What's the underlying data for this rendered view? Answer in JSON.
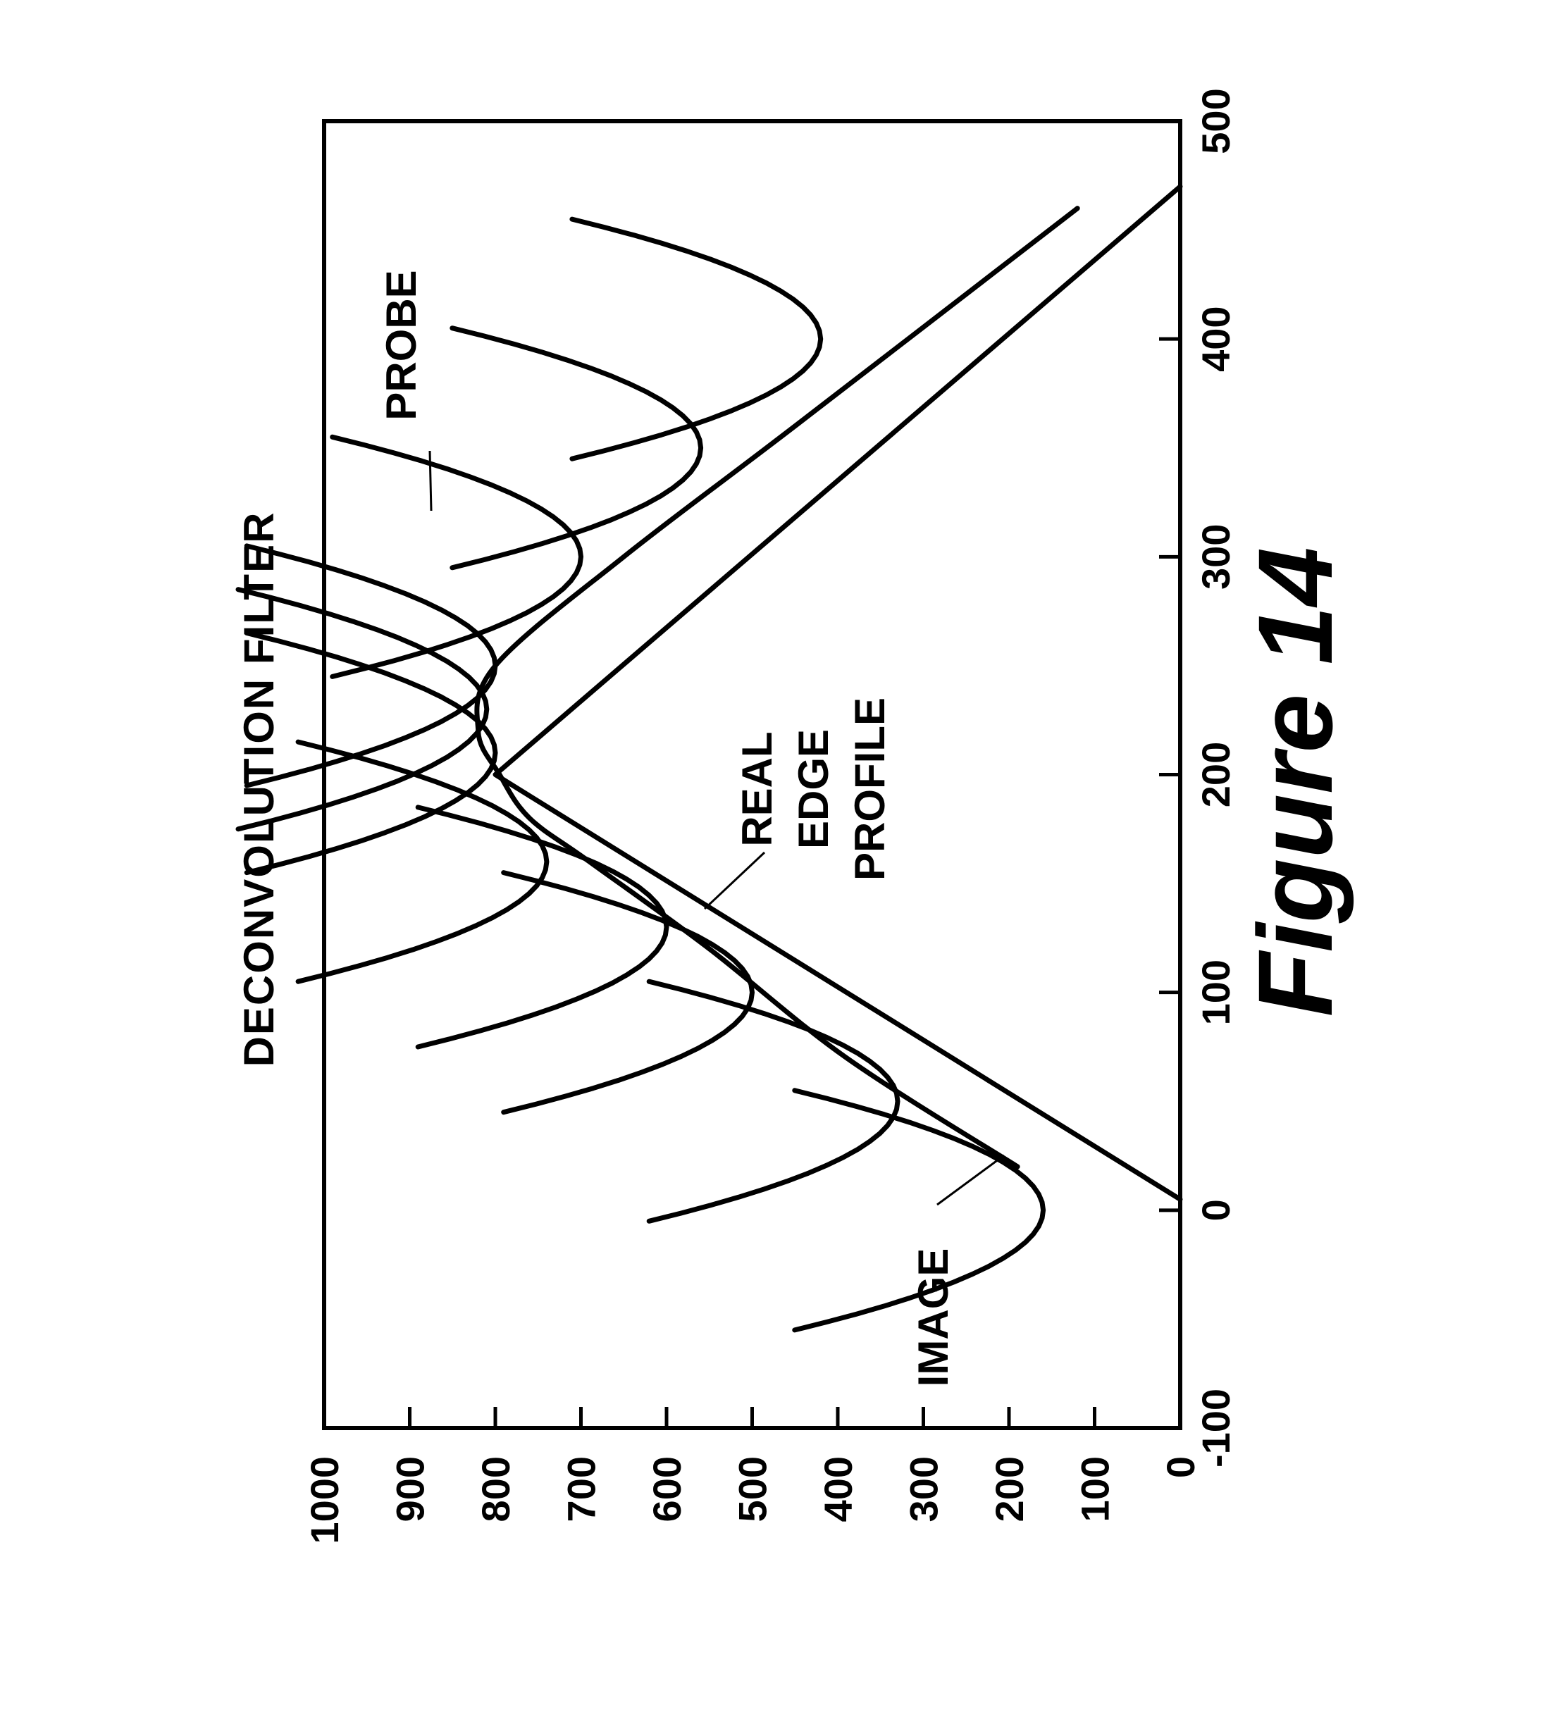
{
  "figure": {
    "caption": "Figure 14"
  },
  "chart_data": {
    "type": "line",
    "title": "DECONVOLUTION FILTER",
    "xlabel": "",
    "ylabel": "",
    "xlim": [
      -100,
      500
    ],
    "ylim": [
      0,
      1000
    ],
    "x_ticks": [
      -100,
      0,
      100,
      200,
      300,
      400,
      500
    ],
    "y_ticks": [
      0,
      100,
      200,
      300,
      400,
      500,
      600,
      700,
      800,
      900,
      1000
    ],
    "x_tick_labels": [
      "-100",
      "0",
      "100",
      "200",
      "300",
      "400",
      "500"
    ],
    "y_tick_labels": [
      "0",
      "100",
      "200",
      "300",
      "400",
      "500",
      "600",
      "700",
      "800",
      "900",
      "1000"
    ],
    "orientation": "rotated 90 degrees counter-clockwise",
    "annotations": [
      {
        "id": "probe",
        "text": "PROBE"
      },
      {
        "id": "real",
        "lines": [
          "REAL",
          "EDGE",
          "PROFILE"
        ]
      },
      {
        "id": "image",
        "text": "IMAGE"
      }
    ],
    "series": [
      {
        "name": "REAL EDGE PROFILE",
        "x": [
          5,
          200,
          470
        ],
        "y": [
          0,
          800,
          0
        ]
      },
      {
        "name": "IMAGE",
        "x": [
          20,
          70,
          120,
          160,
          180,
          200,
          220,
          250,
          300,
          360,
          460
        ],
        "y": [
          190,
          390,
          550,
          690,
          760,
          795,
          820,
          800,
          650,
          450,
          120
        ]
      }
    ],
    "probes": [
      {
        "center_x": 0,
        "center_y": 160,
        "half_width": 55
      },
      {
        "center_x": 50,
        "center_y": 330,
        "half_width": 55
      },
      {
        "center_x": 100,
        "center_y": 500,
        "half_width": 55
      },
      {
        "center_x": 130,
        "center_y": 600,
        "half_width": 55
      },
      {
        "center_x": 160,
        "center_y": 740,
        "half_width": 55
      },
      {
        "center_x": 210,
        "center_y": 800,
        "half_width": 55
      },
      {
        "center_x": 230,
        "center_y": 810,
        "half_width": 55
      },
      {
        "center_x": 250,
        "center_y": 800,
        "half_width": 55
      },
      {
        "center_x": 300,
        "center_y": 700,
        "half_width": 55
      },
      {
        "center_x": 350,
        "center_y": 560,
        "half_width": 55
      },
      {
        "center_x": 400,
        "center_y": 420,
        "half_width": 55
      }
    ],
    "probe_curvature": 0.06
  }
}
